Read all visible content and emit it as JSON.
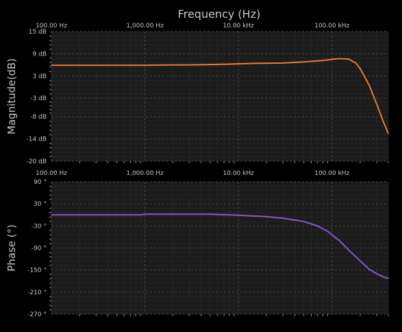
{
  "chart_data": [
    {
      "type": "line",
      "title": "Frequency (Hz)",
      "ylabel": "Magnitude(dB)",
      "x_scale": "log",
      "xlim": [
        100,
        400000
      ],
      "x_ticks": [
        100,
        1000,
        10000,
        100000
      ],
      "x_tick_labels": [
        "100.00 Hz",
        "1,000.00 Hz",
        "10.00 kHz",
        "100.00 kHz"
      ],
      "ylim": [
        -20,
        15
      ],
      "y_ticks": [
        15,
        9,
        3,
        -3,
        -8,
        -14,
        -20
      ],
      "y_tick_labels": [
        "15 dB",
        "9 dB",
        "3 dB",
        "-3 dB",
        "-8 dB",
        "-14 dB",
        "-20 dB"
      ],
      "grid": true,
      "series": [
        {
          "color": "#f07830",
          "x": [
            100,
            300,
            1000,
            2000,
            3000,
            5000,
            8000,
            10000,
            15000,
            30000,
            50000,
            80000,
            100000,
            120000,
            150000,
            180000,
            200000,
            250000,
            300000,
            350000,
            400000
          ],
          "y": [
            5.9,
            5.9,
            5.9,
            6.0,
            6.0,
            6.1,
            6.2,
            6.3,
            6.4,
            6.5,
            6.8,
            7.2,
            7.5,
            7.7,
            7.6,
            6.5,
            5.0,
            0.5,
            -4.5,
            -9.0,
            -12.5
          ]
        }
      ]
    },
    {
      "type": "line",
      "ylabel": "Phase (°)",
      "x_scale": "log",
      "xlim": [
        100,
        400000
      ],
      "x_ticks": [
        100,
        1000,
        10000,
        100000
      ],
      "x_tick_labels": [
        "100.00 Hz",
        "1,000.00 Hz",
        "10.00 kHz",
        "100.00 kHz"
      ],
      "ylim": [
        -270,
        90
      ],
      "y_ticks": [
        90,
        30,
        -30,
        -90,
        -150,
        -210,
        -270
      ],
      "y_tick_labels": [
        "90 °",
        "30 °",
        "-30 °",
        "-90 °",
        "-150 °",
        "-210 °",
        "-270 °"
      ],
      "grid": true,
      "series": [
        {
          "color": "#8a58c8",
          "x": [
            100,
            900,
            1000,
            5000,
            6000,
            8000,
            10000,
            15000,
            20000,
            30000,
            50000,
            70000,
            90000,
            120000,
            150000,
            200000,
            250000,
            300000,
            350000,
            400000
          ],
          "y": [
            0,
            0,
            2,
            2,
            1,
            0,
            -1,
            -3,
            -5,
            -9,
            -18,
            -30,
            -45,
            -70,
            -95,
            -125,
            -148,
            -160,
            -168,
            -173
          ]
        }
      ]
    }
  ]
}
